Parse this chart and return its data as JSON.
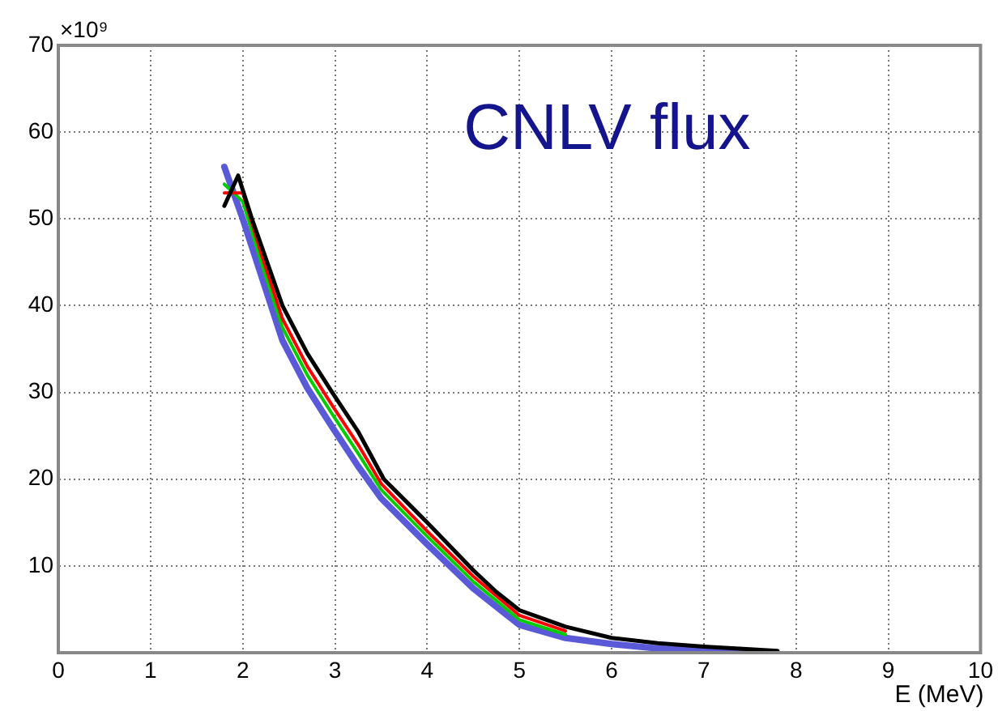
{
  "chart_data": {
    "type": "line",
    "title": "CNLV flux",
    "xlabel": "E (MeV)",
    "annotations": [
      "×10⁹"
    ],
    "xlim": [
      0,
      10
    ],
    "xticks": [
      0,
      1,
      2,
      3,
      4,
      5,
      6,
      7,
      8,
      9,
      10
    ],
    "ylim": [
      0,
      70
    ],
    "yticks": [
      {
        "value": 0,
        "label": null
      },
      10,
      20,
      30,
      40,
      50,
      60,
      70
    ],
    "grid": true,
    "legend": false,
    "marker": "none",
    "line_style": "solid",
    "series": [
      {
        "color": "#000000",
        "x": [
          1.8,
          1.95,
          2.1,
          2.43,
          2.7,
          2.97,
          3.25,
          3.53,
          4,
          4.5,
          4.75,
          5,
          5.5,
          6,
          6.5,
          7,
          7.5,
          7.8
        ],
        "values": [
          51.5,
          55,
          50,
          40,
          34.5,
          30,
          25.5,
          20,
          15,
          9.5,
          7,
          4.9,
          3,
          1.7,
          1.1,
          0.7,
          0.4,
          0.2
        ]
      },
      {
        "color": "#ff0000",
        "x": [
          1.8,
          2,
          2.2,
          2.43,
          2.7,
          2.97,
          3.25,
          3.5,
          4,
          4.5,
          5,
          5.5
        ],
        "values": [
          53,
          53,
          46,
          38.5,
          33,
          28.5,
          24,
          19.5,
          14,
          8.8,
          4.3,
          2.5
        ]
      },
      {
        "color": "#00cc00",
        "x": [
          1.8,
          2,
          2.2,
          2.43,
          2.7,
          2.97,
          3.25,
          3.5,
          4,
          4.5,
          5,
          5.5
        ],
        "values": [
          54,
          52,
          45,
          37.5,
          32,
          27.5,
          23,
          18.8,
          13.4,
          8.2,
          3.8,
          2.1
        ]
      },
      {
        "color": "#5a5ad8",
        "x": [
          1.8,
          2,
          2.2,
          2.43,
          2.7,
          2.97,
          3.25,
          3.5,
          4,
          4.5,
          5,
          5.5,
          6,
          6.5,
          7,
          7.5
        ],
        "values": [
          56,
          50,
          43.5,
          36,
          30.5,
          26,
          21.5,
          17.8,
          12.5,
          7.4,
          3.2,
          1.7,
          1.0,
          0.5,
          0.2,
          0.05
        ]
      }
    ]
  }
}
